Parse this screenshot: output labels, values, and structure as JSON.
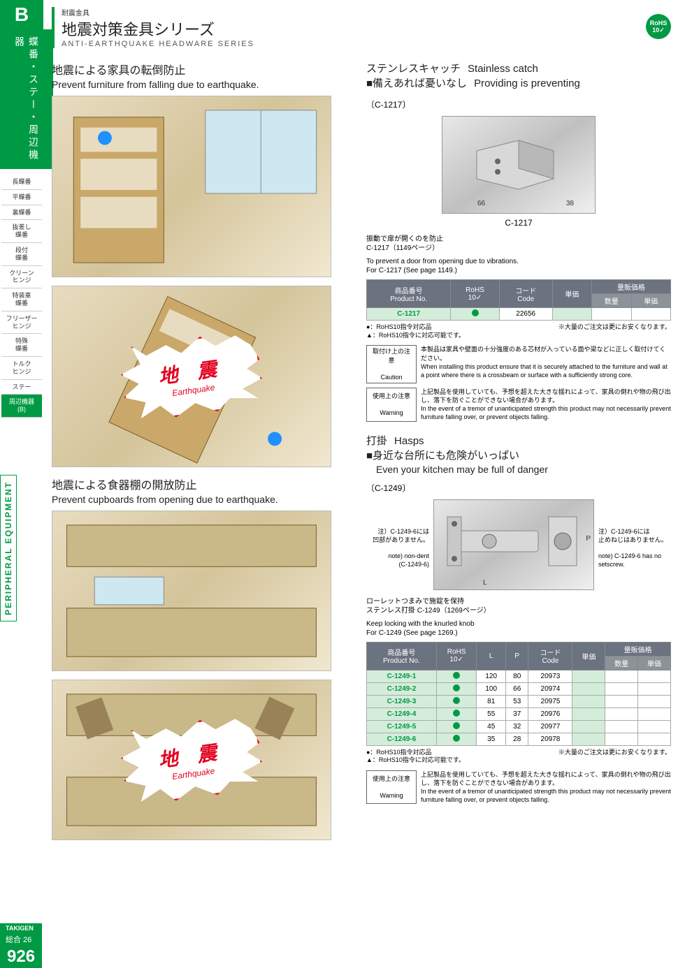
{
  "sidebar": {
    "tab_letter": "B",
    "category": "蝶番・ステー・周辺機器",
    "nav_items": [
      "長蝶番",
      "平蝶番",
      "裏蝶番",
      "抜差し\n蝶番",
      "段付\n蝶番",
      "クリーン\nヒンジ",
      "特装車\n蝶番",
      "フリーザー\nヒンジ",
      "特殊\n蝶番",
      "トルク\nヒンジ",
      "ステー",
      "周辺機器\n(B)"
    ],
    "active_index": 11,
    "peripheral_label": "PERIPHERAL EQUIPMENT"
  },
  "header": {
    "small": "耐震金具",
    "title_jp": "地震対策金具シリーズ",
    "title_en": "ANTI-EARTHQUAKE HEADWARE SERIES",
    "rohs": "RoHS",
    "rohs_num": "10✓"
  },
  "left": {
    "s1_title_jp": "地震による家具の転倒防止",
    "s1_title_en": "Prevent furniture from falling due to earthquake.",
    "s2_title_jp": "地震による食器棚の開放防止",
    "s2_title_en": "Prevent cupboards from opening due to earthquake.",
    "burst_jp": "地 震",
    "burst_en": "Earthquake"
  },
  "r1": {
    "heading_jp": "ステンレスキャッチ",
    "heading_en": "Stainless catch",
    "slogan_jp": "■備えあれば憂いなし",
    "slogan_en": "Providing is preventing",
    "bracket": "〔C-1217〕",
    "dim1": "66",
    "dim2": "38",
    "code_under": "C-1217",
    "desc_jp": "振動で扉が開くのを防止\nC-1217（1149ページ）",
    "desc_en": "To prevent a door from opening due to vibrations.\nFor C-1217 (See page 1149.)",
    "th_pn_jp": "商品番号",
    "th_pn_en": "Product No.",
    "th_rohs": "RoHS\n10✓",
    "th_code_jp": "コード",
    "th_code_en": "Code",
    "th_unit": "単価",
    "th_bulk": "量販価格",
    "th_qty": "数量",
    "th_bulk_unit": "単価",
    "row": {
      "pn": "C-1217",
      "code": "22656"
    },
    "rohs_note1": "●：RoHS10指令対応品",
    "rohs_note2": "▲：RoHS10指令に対応可能です。",
    "bulk_note": "※大量のご注文は更にお安くなります。",
    "caution_label_jp": "取付け上の注意",
    "caution_label_en": "Caution",
    "caution_jp": "本製品は家具や壁面の十分強度のある芯材が入っている面や梁などに正しく取付けてください。",
    "caution_en": "When installing this product ensure that it is securely attached to the furniture and wall at a point where there is a crossbeam or surface with a sufficiently strong core.",
    "warn_label_jp": "使用上の注意",
    "warn_label_en": "Warning",
    "warn_jp": "上記製品を使用していても、予想を超えた大きな揺れによって、家具の倒れや物の飛び出し、落下を防ぐことができない場合があります。",
    "warn_en": "In the event of a tremor of unanticipated strength this product may not necessarily prevent furniture falling over, or prevent objects falling."
  },
  "r2": {
    "heading_jp": "打掛",
    "heading_en": "Hasps",
    "slogan_jp": "■身近な台所にも危険がいっぱい",
    "slogan_en": "Even your kitchen may be full of danger",
    "bracket": "〔C-1249〕",
    "note_left_jp": "注）C-1249-6には\n凹部がありません。",
    "note_left_en": "note) non-dent\n(C-1249-6)",
    "note_right_jp": "注）C-1249-6には\n止めねじはありません。",
    "note_right_en": "note) C-1249-6 has no\nsetscrew.",
    "dim_L": "L",
    "dim_P": "P",
    "desc_jp": "ローレットつまみで施錠を保持\nステンレス打掛 C-1249（1269ページ）",
    "desc_en": "Keep locking with the knurled knob\nFor C-1249 (See page 1269.)",
    "th_L": "L",
    "th_P": "P",
    "rows": [
      {
        "pn": "C-1249-1",
        "L": "120",
        "P": "80",
        "code": "20973"
      },
      {
        "pn": "C-1249-2",
        "L": "100",
        "P": "66",
        "code": "20974"
      },
      {
        "pn": "C-1249-3",
        "L": "81",
        "P": "53",
        "code": "20975"
      },
      {
        "pn": "C-1249-4",
        "L": "55",
        "P": "37",
        "code": "20976"
      },
      {
        "pn": "C-1249-5",
        "L": "45",
        "P": "32",
        "code": "20977"
      },
      {
        "pn": "C-1249-6",
        "L": "35",
        "P": "28",
        "code": "20978"
      }
    ]
  },
  "footer": {
    "takigen": "TAKIGEN",
    "sogo": "総合 26",
    "page": "926"
  },
  "colors": {
    "green": "#009a44",
    "red": "#e30020",
    "th_bg": "#6b7280"
  }
}
